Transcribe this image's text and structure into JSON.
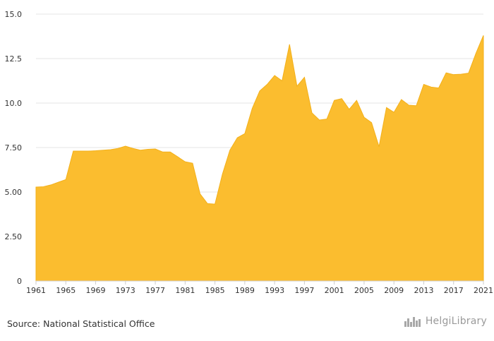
{
  "chart_data": {
    "type": "area",
    "x": [
      1961,
      1962,
      1963,
      1964,
      1965,
      1966,
      1967,
      1968,
      1969,
      1970,
      1971,
      1972,
      1973,
      1974,
      1975,
      1976,
      1977,
      1978,
      1979,
      1980,
      1981,
      1982,
      1983,
      1984,
      1985,
      1986,
      1987,
      1988,
      1989,
      1990,
      1991,
      1992,
      1993,
      1994,
      1995,
      1996,
      1997,
      1998,
      1999,
      2000,
      2001,
      2002,
      2003,
      2004,
      2005,
      2006,
      2007,
      2008,
      2009,
      2010,
      2011,
      2012,
      2013,
      2014,
      2015,
      2016,
      2017,
      2018,
      2019,
      2020,
      2021
    ],
    "values": [
      5.28,
      5.3,
      5.4,
      5.55,
      5.7,
      7.3,
      7.3,
      7.3,
      7.32,
      7.35,
      7.38,
      7.45,
      7.58,
      7.45,
      7.35,
      7.4,
      7.42,
      7.25,
      7.25,
      6.98,
      6.7,
      6.62,
      4.9,
      4.35,
      4.32,
      6.0,
      7.35,
      8.05,
      8.28,
      9.7,
      10.68,
      11.05,
      11.55,
      11.25,
      13.3,
      10.95,
      11.45,
      9.45,
      9.05,
      9.1,
      10.15,
      10.25,
      9.65,
      10.15,
      9.2,
      8.9,
      7.55,
      9.75,
      9.48,
      10.2,
      9.88,
      9.85,
      11.05,
      10.9,
      10.85,
      11.7,
      11.6,
      11.62,
      11.68,
      12.8,
      13.8
    ],
    "x_ticks": [
      "1961",
      "1965",
      "1969",
      "1973",
      "1977",
      "1981",
      "1985",
      "1989",
      "1993",
      "1997",
      "2001",
      "2005",
      "2009",
      "2013",
      "2017",
      "2021"
    ],
    "y_ticks": [
      "0",
      "2.50",
      "5.00",
      "7.50",
      "10.0",
      "12.5",
      "15.0"
    ],
    "ylim": [
      0,
      15
    ],
    "xlim": [
      1961,
      2021
    ],
    "grid": "horizontal",
    "title": "",
    "xlabel": "",
    "ylabel": "",
    "colors": {
      "area_fill": "#fbbd2f",
      "area_stroke": "#f3b01a",
      "grid": "#e6e6e6",
      "tick_text": "#333333"
    }
  },
  "footer": {
    "source": "Source: National Statistical Office",
    "logo_text": "HelgiLibrary",
    "logo_icon": "city-skyline-icon"
  }
}
